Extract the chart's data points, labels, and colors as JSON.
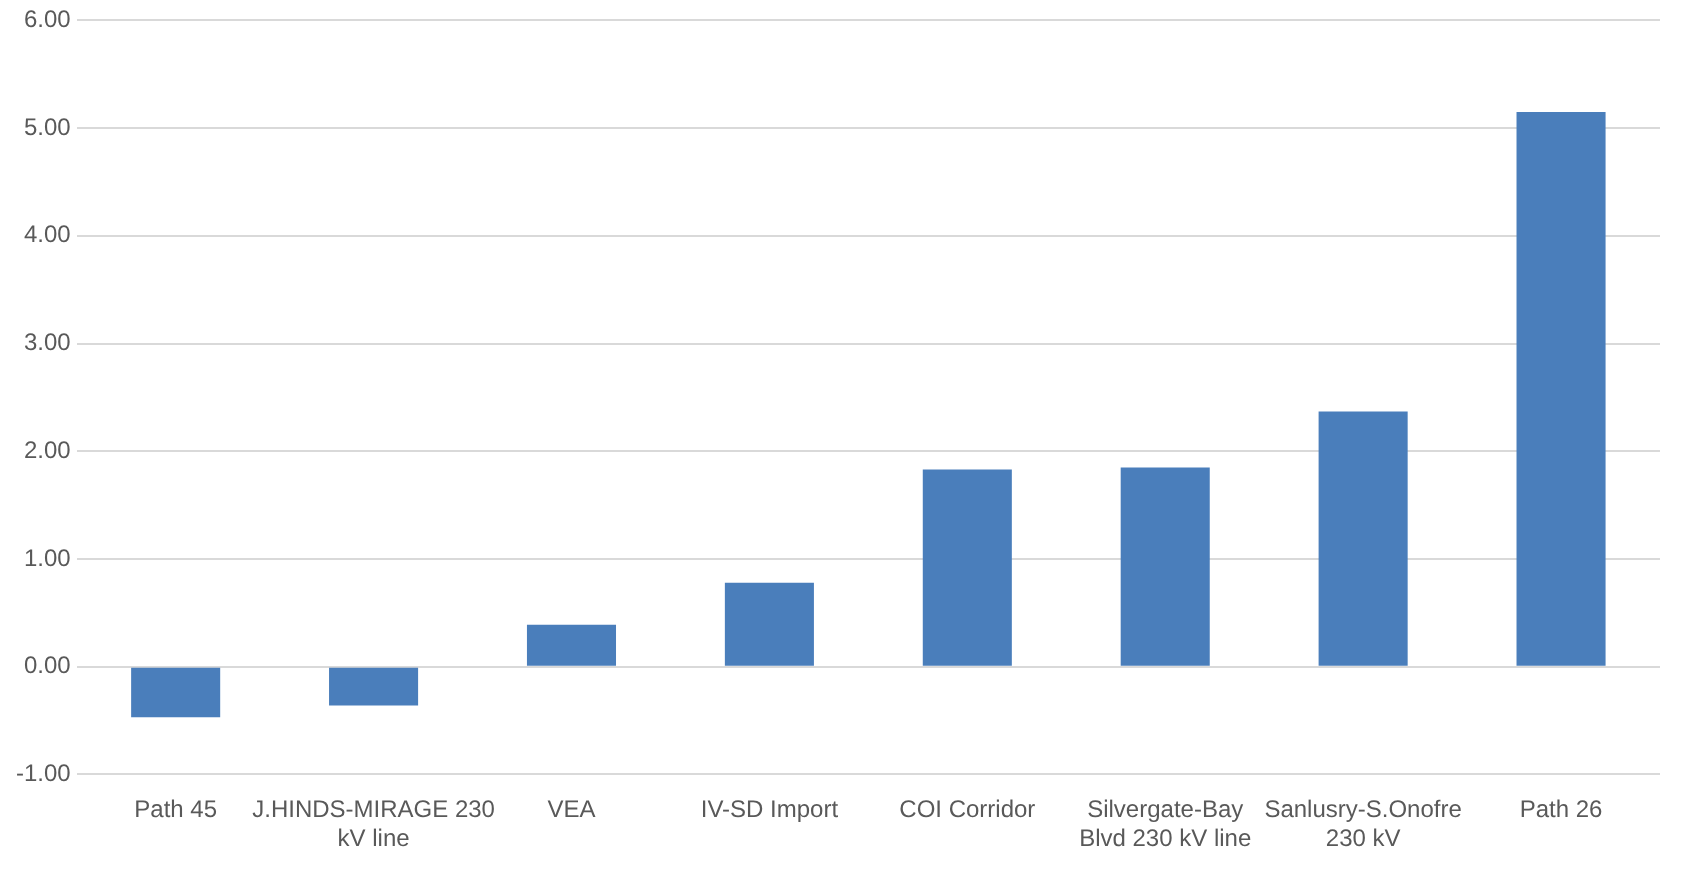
{
  "chart_data": {
    "type": "bar",
    "categories": [
      "Path 45",
      "J.HINDS-MIRAGE 230 kV line",
      "VEA",
      "IV-SD Import",
      "COI Corridor",
      "Silvergate-Bay Blvd 230 kV line",
      "Sanlusry-S.Onofre 230 kV",
      "Path 26"
    ],
    "values": [
      -0.47,
      -0.36,
      0.39,
      0.78,
      1.83,
      1.85,
      2.37,
      5.15
    ],
    "color": "#4a7ebb",
    "ylim": [
      -1,
      6
    ],
    "yticks": [
      {
        "value": -1,
        "label": "-1.00"
      },
      {
        "value": 0,
        "label": "0.00"
      },
      {
        "value": 1,
        "label": "1.00"
      },
      {
        "value": 2,
        "label": "2.00"
      },
      {
        "value": 3,
        "label": "3.00"
      },
      {
        "value": 4,
        "label": "4.00"
      },
      {
        "value": 5,
        "label": "5.00"
      },
      {
        "value": 6,
        "label": "6.00"
      }
    ],
    "grid": "y"
  }
}
